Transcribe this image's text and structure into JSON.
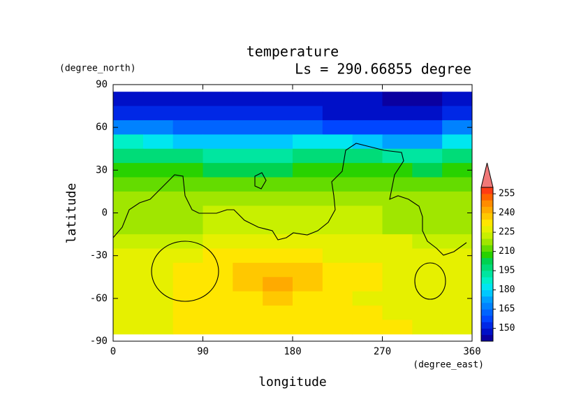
{
  "chart_data": {
    "type": "contour",
    "title": "temperature",
    "subtitle": "Ls = 290.66855 degree",
    "xlabel": "longitude",
    "ylabel": "latitude",
    "xunit": "(degree_east)",
    "yunit": "(degree_north)",
    "xlim": [
      0,
      360
    ],
    "ylim": [
      -90,
      90
    ],
    "xticks": [
      0,
      90,
      180,
      270,
      360
    ],
    "yticks": [
      -90,
      -60,
      -30,
      0,
      30,
      60,
      90
    ],
    "x": [
      15,
      45,
      75,
      105,
      135,
      165,
      195,
      225,
      255,
      285,
      315,
      345
    ],
    "y": [
      80,
      70,
      60,
      50,
      40,
      30,
      20,
      10,
      0,
      -10,
      -20,
      -30,
      -40,
      -50,
      -60,
      -70,
      -80
    ],
    "z": [
      [
        145,
        145,
        145,
        145,
        145,
        145,
        145,
        145,
        145,
        144,
        143,
        145
      ],
      [
        152,
        152,
        151,
        150,
        150,
        150,
        150,
        149,
        149,
        148,
        147,
        152
      ],
      [
        165,
        165,
        162,
        160,
        160,
        160,
        160,
        158,
        157,
        156,
        155,
        165
      ],
      [
        185,
        182,
        178,
        175,
        175,
        178,
        180,
        180,
        178,
        172,
        170,
        180
      ],
      [
        198,
        198,
        195,
        192,
        190,
        192,
        195,
        195,
        195,
        192,
        190,
        198
      ],
      [
        207,
        206,
        205,
        204,
        203,
        204,
        205,
        205,
        205,
        205,
        204,
        207
      ],
      [
        212,
        212,
        212,
        212,
        212,
        212,
        212,
        212,
        212,
        212,
        212,
        212
      ],
      [
        215,
        215,
        215,
        216,
        216,
        216,
        216,
        216,
        215,
        215,
        215,
        215
      ],
      [
        217,
        217,
        217,
        220,
        220,
        220,
        220,
        220,
        220,
        217,
        217,
        217
      ],
      [
        218,
        218,
        218,
        220,
        222,
        222,
        222,
        222,
        220,
        218,
        218,
        218
      ],
      [
        222,
        222,
        224,
        225,
        225,
        225,
        225,
        225,
        225,
        225,
        222,
        222
      ],
      [
        225,
        226,
        228,
        230,
        230,
        230,
        230,
        228,
        228,
        226,
        226,
        225
      ],
      [
        226,
        228,
        230,
        232,
        236,
        237,
        236,
        233,
        230,
        228,
        227,
        226
      ],
      [
        227,
        228,
        230,
        232,
        238,
        240,
        236,
        232,
        230,
        228,
        227,
        227
      ],
      [
        227,
        228,
        230,
        232,
        234,
        236,
        233,
        230,
        228,
        227,
        227,
        227
      ],
      [
        228,
        229,
        230,
        231,
        232,
        232,
        231,
        230,
        230,
        229,
        228,
        228
      ],
      [
        228,
        229,
        230,
        231,
        231,
        231,
        231,
        231,
        231,
        230,
        229,
        229
      ]
    ],
    "levels": [
      140,
      145,
      150,
      155,
      160,
      165,
      170,
      175,
      180,
      185,
      190,
      195,
      200,
      205,
      210,
      215,
      220,
      225,
      230,
      235,
      240,
      245,
      250,
      255,
      260
    ],
    "colors": [
      "#0a00a0",
      "#0010c8",
      "#0028e6",
      "#0046ff",
      "#0064ff",
      "#0082ff",
      "#00a0ff",
      "#00c8ff",
      "#00e6f0",
      "#00f0c8",
      "#00e6a0",
      "#00dc78",
      "#00d250",
      "#28d200",
      "#64dc00",
      "#a0e600",
      "#c8f000",
      "#e6f000",
      "#ffe600",
      "#ffc800",
      "#ffaa00",
      "#ff8c00",
      "#ff6400",
      "#ff3c14",
      "#f07878"
    ],
    "cticks": [
      150,
      165,
      180,
      195,
      210,
      225,
      240,
      255
    ]
  }
}
